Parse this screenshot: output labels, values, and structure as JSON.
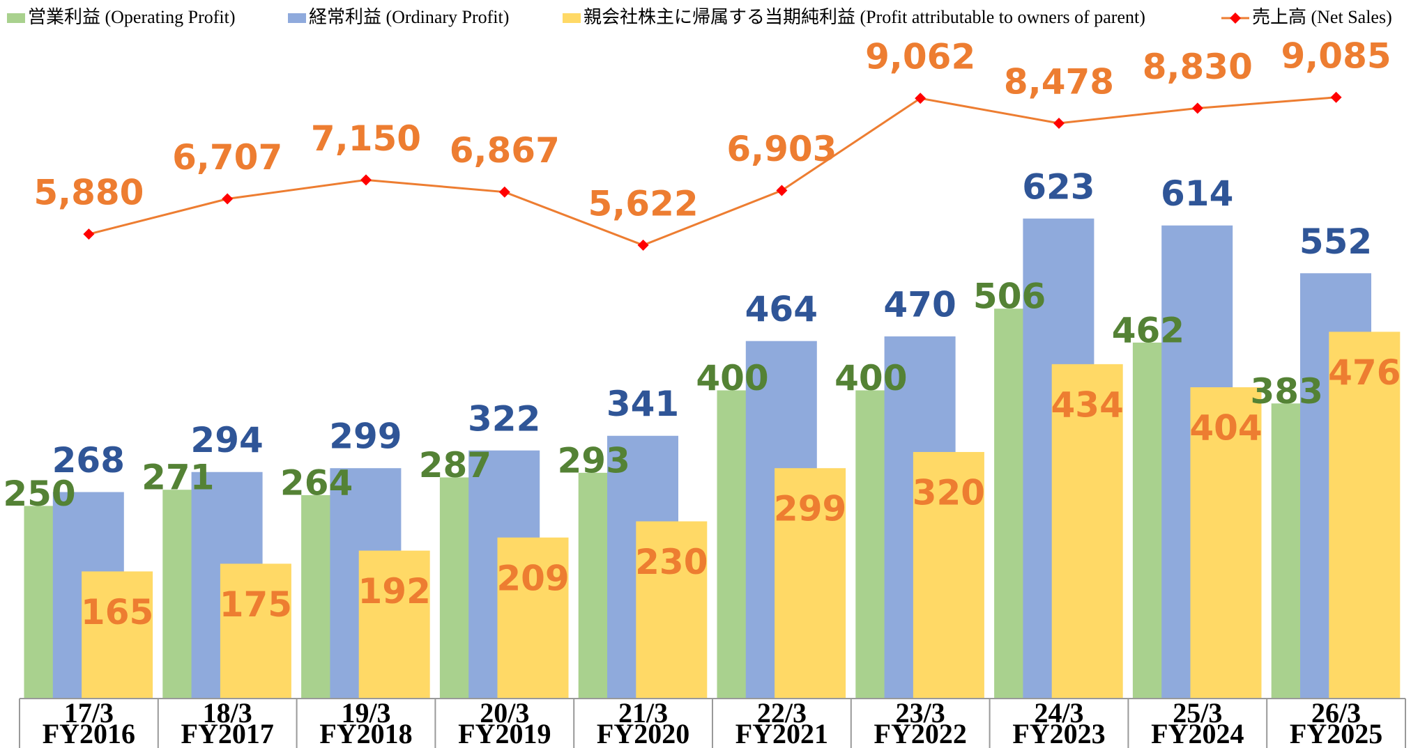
{
  "chart_data": {
    "type": "bar",
    "categories": [
      [
        "17/3",
        "FY2016"
      ],
      [
        "18/3",
        "FY2017"
      ],
      [
        "19/3",
        "FY2018"
      ],
      [
        "20/3",
        "FY2019"
      ],
      [
        "21/3",
        "FY2020"
      ],
      [
        "22/3",
        "FY2021"
      ],
      [
        "23/3",
        "FY2022"
      ],
      [
        "24/3",
        "FY2023"
      ],
      [
        "25/3",
        "FY2024"
      ],
      [
        "26/3",
        "FY2025"
      ]
    ],
    "ylim": [
      0,
      903
    ],
    "y2lim": [
      -5000,
      11300
    ],
    "series": [
      {
        "name": "営業利益 (Operating Profit)",
        "type": "bar",
        "color": "#a9d18e",
        "label_color": "#548235",
        "values": [
          250,
          271,
          264,
          287,
          293,
          400,
          400,
          506,
          462,
          383
        ]
      },
      {
        "name": "経常利益 (Ordinary Profit)",
        "type": "bar",
        "color": "#8faadc",
        "label_color": "#2f5597",
        "values": [
          268,
          294,
          299,
          322,
          341,
          464,
          470,
          623,
          614,
          552
        ]
      },
      {
        "name": "親会社株主に帰属する当期純利益 (Profit  attributable to owners of parent)",
        "type": "bar",
        "color": "#ffd966",
        "label_color": "#ed7d31",
        "values": [
          165,
          175,
          192,
          209,
          230,
          299,
          320,
          434,
          404,
          476
        ]
      },
      {
        "name": "売上高 (Net Sales)",
        "type": "line",
        "axis": "y2",
        "color": "#ed7d31",
        "marker_color": "#ff0000",
        "label_color": "#ed7d31",
        "values": [
          5880,
          6707,
          7150,
          6867,
          5622,
          6903,
          9062,
          8478,
          8830,
          9085
        ],
        "value_labels": [
          "5,880",
          "6,707",
          "7,150",
          "6,867",
          "5,622",
          "6,903",
          "9,062",
          "8,478",
          "8,830",
          "9,085"
        ]
      }
    ]
  }
}
